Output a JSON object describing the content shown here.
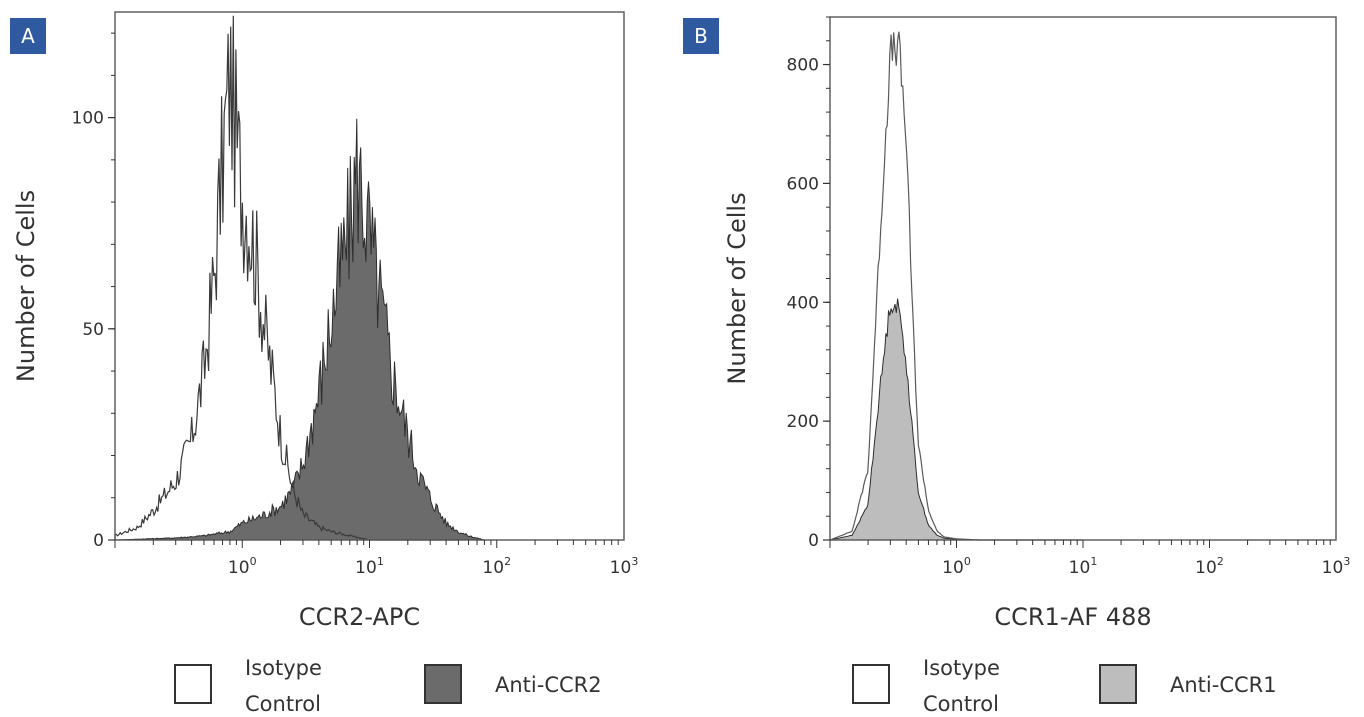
{
  "chart_data": [
    {
      "panel": "A",
      "type": "area",
      "xscale": "log",
      "xlim": [
        0.1,
        1000
      ],
      "ylim": [
        0,
        125
      ],
      "xticks": [
        {
          "v": 1,
          "base": "10",
          "exp": "0"
        },
        {
          "v": 10,
          "base": "10",
          "exp": "1"
        },
        {
          "v": 100,
          "base": "10",
          "exp": "2"
        },
        {
          "v": 1000,
          "base": "10",
          "exp": "3"
        }
      ],
      "yticks": [
        0,
        50,
        100
      ],
      "xlabel": "CCR2-APC",
      "ylabel": "Number of Cells",
      "series": [
        {
          "name": "Isotype Control",
          "style": "outline",
          "color": "#3a3a3a",
          "x": [
            0.1,
            0.15,
            0.2,
            0.3,
            0.4,
            0.5,
            0.6,
            0.7,
            0.8,
            0.9,
            1.0,
            1.1,
            1.3,
            1.5,
            1.8,
            2.0,
            2.5,
            3.0,
            4.0,
            5.0,
            7.0,
            10,
            20,
            50
          ],
          "y": [
            1,
            3,
            7,
            14,
            24,
            40,
            62,
            90,
            110,
            95,
            82,
            78,
            65,
            50,
            35,
            25,
            12,
            6,
            3,
            2,
            1,
            0,
            0,
            0
          ]
        },
        {
          "name": "Anti-CCR2",
          "style": "filled",
          "color": "#6b6b6b",
          "x": [
            0.1,
            0.3,
            0.5,
            0.8,
            1.0,
            1.5,
            2.0,
            2.5,
            3.0,
            4.0,
            5.0,
            6.0,
            7.0,
            8.0,
            9.0,
            10,
            12,
            15,
            20,
            25,
            30,
            40,
            50,
            60,
            80
          ],
          "y": [
            0,
            0.5,
            1,
            2,
            4,
            6,
            8,
            12,
            18,
            35,
            52,
            65,
            75,
            88,
            80,
            72,
            58,
            40,
            25,
            15,
            10,
            4,
            2,
            1,
            0
          ]
        }
      ]
    },
    {
      "panel": "B",
      "type": "area",
      "xscale": "log",
      "xlim": [
        0.1,
        1000
      ],
      "ylim": [
        0,
        880
      ],
      "xticks": [
        {
          "v": 1,
          "base": "10",
          "exp": "0"
        },
        {
          "v": 10,
          "base": "10",
          "exp": "1"
        },
        {
          "v": 100,
          "base": "10",
          "exp": "2"
        },
        {
          "v": 1000,
          "base": "10",
          "exp": "3"
        }
      ],
      "yticks": [
        0,
        200,
        400,
        600,
        800
      ],
      "xlabel": "CCR1-AF 488",
      "ylabel": "Number of Cells",
      "series": [
        {
          "name": "Isotype Control",
          "style": "outline",
          "color": "#5a5a5a",
          "x": [
            0.1,
            0.15,
            0.2,
            0.25,
            0.3,
            0.35,
            0.4,
            0.45,
            0.5,
            0.6,
            0.7,
            0.8,
            1.0,
            1.5,
            2.0,
            10
          ],
          "y": [
            0,
            15,
            120,
            520,
            820,
            830,
            680,
            380,
            160,
            50,
            15,
            5,
            2,
            0,
            0,
            0
          ]
        },
        {
          "name": "Anti-CCR1",
          "style": "filled",
          "color": "#bdbdbd",
          "x": [
            0.1,
            0.15,
            0.2,
            0.25,
            0.3,
            0.35,
            0.4,
            0.45,
            0.5,
            0.6,
            0.7,
            0.8,
            1.0,
            1.5,
            2.0,
            10
          ],
          "y": [
            0,
            8,
            60,
            260,
            400,
            390,
            300,
            180,
            80,
            25,
            8,
            3,
            1,
            0,
            0,
            0
          ]
        }
      ]
    }
  ],
  "legends": [
    [
      {
        "lines": [
          "Isotype",
          "Control"
        ],
        "fill": "#ffffff"
      },
      {
        "lines": [
          "Anti-CCR2"
        ],
        "fill": "#6b6b6b"
      }
    ],
    [
      {
        "lines": [
          "Isotype",
          "Control"
        ],
        "fill": "#ffffff"
      },
      {
        "lines": [
          "Anti-CCR1"
        ],
        "fill": "#bdbdbd"
      }
    ]
  ],
  "colors": {
    "badge": "#2f5aa0",
    "axis": "#333333"
  }
}
